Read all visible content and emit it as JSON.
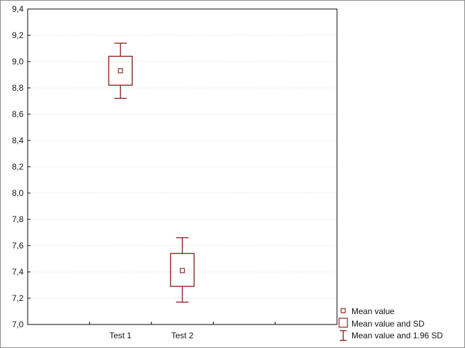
{
  "chart_data": {
    "type": "box",
    "categories": [
      "Test 1",
      "Test 2"
    ],
    "series": [
      {
        "category": "Test 1",
        "mean": 8.93,
        "sd_low": 8.82,
        "sd_high": 9.04,
        "ci_low": 8.72,
        "ci_high": 9.14
      },
      {
        "category": "Test 2",
        "mean": 7.41,
        "sd_low": 7.29,
        "sd_high": 7.54,
        "ci_low": 7.17,
        "ci_high": 7.66
      }
    ],
    "ylim": [
      7.0,
      9.4
    ],
    "yticks": [
      "7,0",
      "7,2",
      "7,4",
      "7,6",
      "7,8",
      "8,0",
      "8,2",
      "8,4",
      "8,6",
      "8,8",
      "9,0",
      "9,2",
      "9,4"
    ],
    "legend": {
      "placement": "bottom-right",
      "entries": [
        "Mean value",
        "Mean value and SD",
        "Mean value and 1.96 SD"
      ]
    },
    "grid": true,
    "color": "#8b2323"
  }
}
